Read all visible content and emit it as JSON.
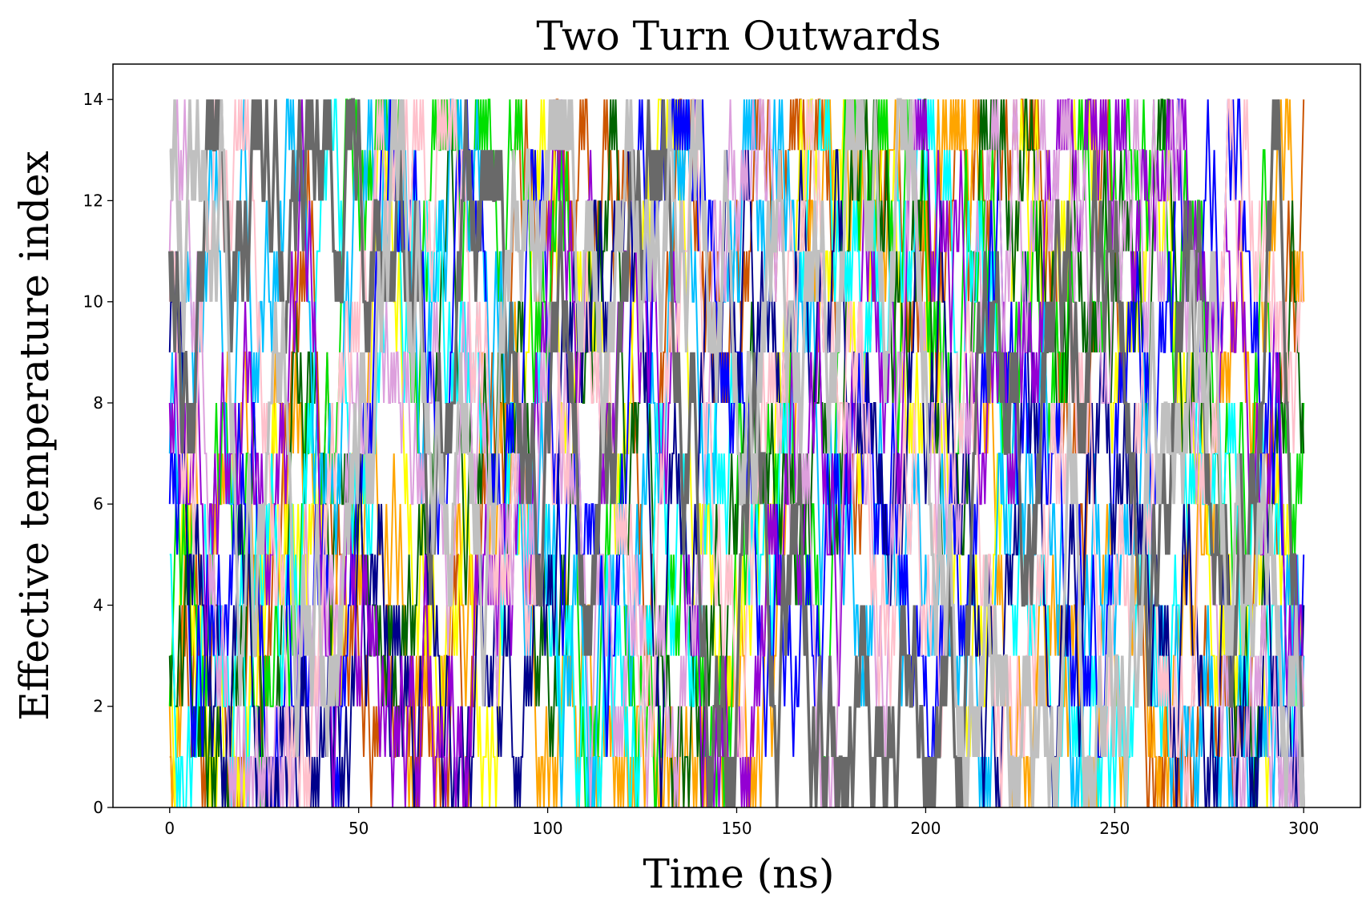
{
  "chart_data": {
    "type": "line",
    "title": "Two Turn Outwards",
    "xlabel": "Time (ns)",
    "ylabel": "Effective temperature index",
    "xlim": [
      -15,
      315
    ],
    "ylim": [
      0,
      14.7
    ],
    "x_ticks": [
      0,
      50,
      100,
      150,
      200,
      250,
      300
    ],
    "y_ticks": [
      0,
      2,
      4,
      6,
      8,
      10,
      12,
      14
    ],
    "x_tick_labels": [
      "0",
      "50",
      "100",
      "150",
      "200",
      "250",
      "300"
    ],
    "y_tick_labels": [
      "0",
      "2",
      "4",
      "6",
      "8",
      "10",
      "12",
      "14"
    ],
    "grid": false,
    "legend": "none",
    "x_range": [
      0,
      300
    ],
    "y_levels": [
      0,
      14
    ],
    "series": [
      {
        "color": "#cc5500"
      },
      {
        "color": "#ffa500"
      },
      {
        "color": "#ffff00"
      },
      {
        "color": "#00e000"
      },
      {
        "color": "#006400"
      },
      {
        "color": "#00ffff"
      },
      {
        "color": "#00bfff"
      },
      {
        "color": "#0000ff"
      },
      {
        "color": "#00008b"
      },
      {
        "color": "#9400d3"
      },
      {
        "color": "#dda0dd"
      },
      {
        "color": "#ffc0cb"
      },
      {
        "color": "#696969"
      },
      {
        "color": "#c0c0c0"
      }
    ]
  }
}
